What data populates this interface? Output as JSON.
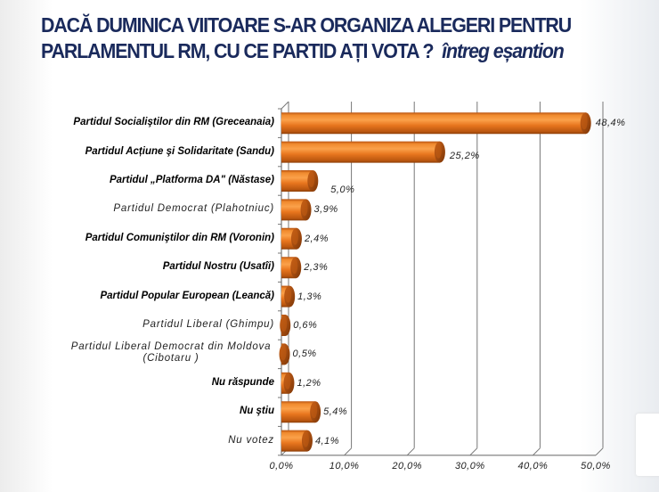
{
  "title": {
    "line1": "DACĂ  DUMINICA VIITOARE S-AR ORGANIZA ALEGERI PENTRU",
    "line2": "PARLAMENTUL RM, CU CE PARTID AȚI VOTA ?",
    "subtitle": "întreg eșantion"
  },
  "chart_data": {
    "type": "bar",
    "orientation": "horizontal",
    "title": "DACĂ DUMINICA VIITOARE S-AR ORGANIZA ALEGERI PENTRU PARLAMENTUL RM, CU CE PARTID AȚI VOTA ? întreg eșantion",
    "xlabel": "",
    "ylabel": "",
    "xlim": [
      0,
      50
    ],
    "grid": true,
    "bar_color": "#e8761e",
    "categories": [
      "Partidul Socialiştilor din RM  (Greceanaia)",
      "Partidul Acțiune şi Solidaritate (Sandu)",
      "Partidul „Platforma DA\" (Năstase)",
      "Partidul Democrat (Plahotniuc)",
      "Partidul Comuniştilor din RM  (Voronin)",
      "Partidul  Nostru  (Usatîi)",
      "Partidul Popular European  (Leancă)",
      "Partidul Liberal (Ghimpu)",
      "Partidul Liberal Democrat din Moldova (Cibotaru )",
      "Nu răspunde",
      "Nu ştiu",
      "Nu votez"
    ],
    "label_bold": [
      true,
      true,
      true,
      false,
      true,
      true,
      true,
      false,
      false,
      true,
      true,
      false
    ],
    "values": [
      48.4,
      25.2,
      5.0,
      3.9,
      2.4,
      2.3,
      1.3,
      0.6,
      0.5,
      1.2,
      5.4,
      4.1
    ],
    "value_labels": [
      "48,4%",
      "25,2%",
      "5,0%",
      "3,9%",
      "2,4%",
      "2,3%",
      "1,3%",
      "0,6%",
      "0,5%",
      "1,2%",
      "5,4%",
      "4,1%"
    ],
    "x_ticks": [
      0,
      10,
      20,
      30,
      40,
      50
    ],
    "x_tick_labels": [
      "0,0%",
      "10,0%",
      "20,0%",
      "30,0%",
      "40,0%",
      "50,0%"
    ]
  }
}
